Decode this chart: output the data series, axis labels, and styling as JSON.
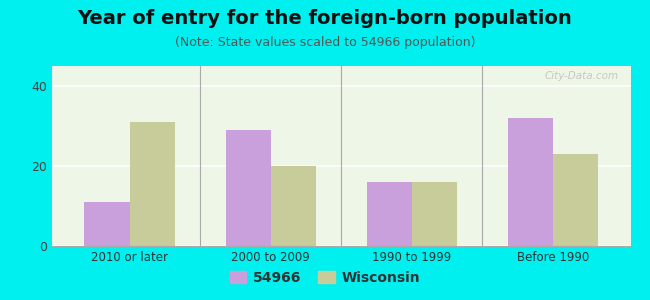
{
  "title": "Year of entry for the foreign-born population",
  "subtitle": "(Note: State values scaled to 54966 population)",
  "categories": [
    "2010 or later",
    "2000 to 2009",
    "1990 to 1999",
    "Before 1990"
  ],
  "values_54966": [
    11,
    29,
    16,
    32
  ],
  "values_wisconsin": [
    31,
    20,
    16,
    23
  ],
  "color_54966": "#c9a0dc",
  "color_wisconsin": "#c8cc9a",
  "background_outer": "#00efef",
  "background_chart_top": "#e8f5e0",
  "background_chart_bottom": "#f8fdf5",
  "ylim": [
    0,
    45
  ],
  "yticks": [
    0,
    20,
    40
  ],
  "bar_width": 0.32,
  "title_fontsize": 14,
  "subtitle_fontsize": 9,
  "legend_label_1": "54966",
  "legend_label_2": "Wisconsin"
}
